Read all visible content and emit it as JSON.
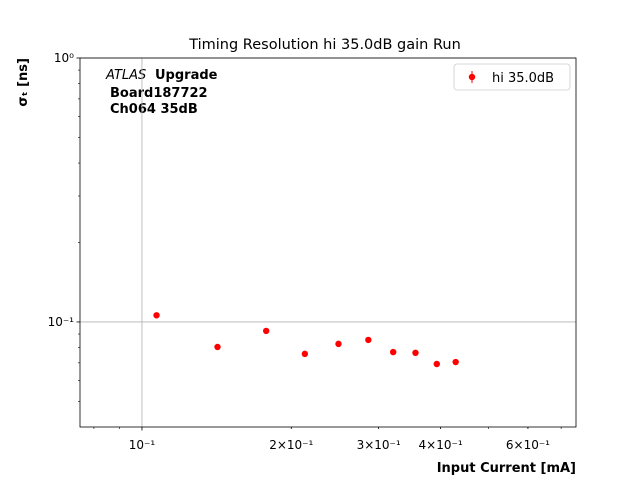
{
  "chart_data": {
    "type": "scatter",
    "title": "Timing Resolution hi 35.0dB gain Run",
    "xlabel": "Input Current [mA]",
    "ylabel": "σₜ [ns]",
    "annotations": [
      "ATLAS",
      "Upgrade",
      "Board187722",
      "Ch064 35dB"
    ],
    "xscale": "log",
    "yscale": "log",
    "xlim": [
      0.075,
      0.75
    ],
    "ylim": [
      0.04,
      1
    ],
    "xticks": [
      {
        "value": 0.1,
        "label": "10⁻¹"
      },
      {
        "value": 0.2,
        "label": "2×10⁻¹"
      },
      {
        "value": 0.3,
        "label": "3×10⁻¹"
      },
      {
        "value": 0.4,
        "label": "4×10⁻¹"
      },
      {
        "value": 0.6,
        "label": "6×10⁻¹"
      }
    ],
    "xminorticks": [
      0.08,
      0.09,
      0.5,
      0.7
    ],
    "yticks": [
      {
        "value": 0.1,
        "label": "10⁻¹"
      },
      {
        "value": 1,
        "label": "10⁰"
      }
    ],
    "yminorticks": [
      0.05,
      0.06,
      0.07,
      0.08,
      0.09,
      0.2,
      0.3,
      0.4,
      0.5,
      0.6,
      0.7,
      0.8,
      0.9
    ],
    "grid": true,
    "legend": "upper right",
    "series": [
      {
        "name": "hi 35.0dB",
        "color": "#ff0000",
        "x": [
          0.107,
          0.142,
          0.178,
          0.213,
          0.249,
          0.286,
          0.321,
          0.356,
          0.393,
          0.429
        ],
        "values": [
          0.106,
          0.0804,
          0.0925,
          0.0757,
          0.0826,
          0.0855,
          0.0769,
          0.0764,
          0.0693,
          0.0705
        ]
      }
    ]
  }
}
